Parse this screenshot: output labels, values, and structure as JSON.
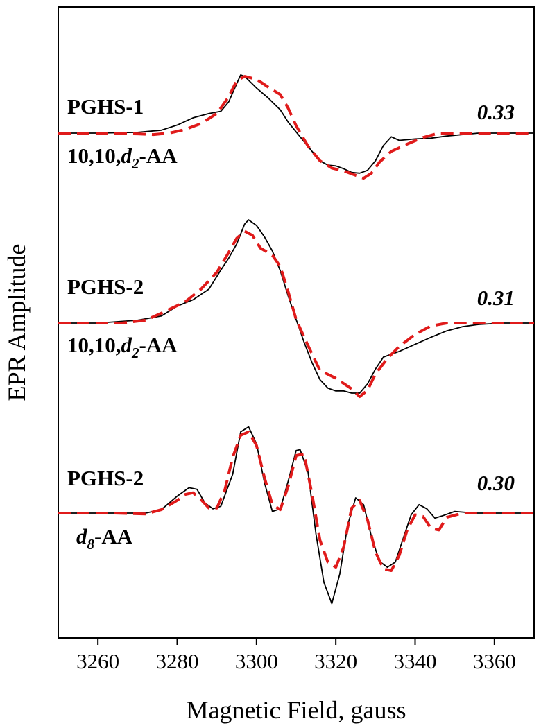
{
  "chart_data": {
    "type": "line",
    "title": "",
    "xlabel": "Magnetic Field, gauss",
    "ylabel": "EPR Amplitude",
    "xlim": [
      3250,
      3370
    ],
    "x_ticks": [
      "3260",
      "3280",
      "3300",
      "3320",
      "3340",
      "3360"
    ],
    "x_tick_values": [
      3260,
      3280,
      3300,
      3320,
      3340,
      3360
    ],
    "y_ticks_shown": false,
    "grid": false,
    "legend": "none",
    "colors": {
      "experimental": "#000000",
      "simulation": "#e01b1b"
    },
    "panels": [
      {
        "label_line1": "PGHS-1",
        "label_line2": {
          "prefix": "10,10,",
          "italic": "d",
          "sub": "2",
          "suffix": "-AA"
        },
        "value": "0.33",
        "series": [
          {
            "style": "solid",
            "points": [
              [
                3250,
                0.0
              ],
              [
                3260,
                0.0
              ],
              [
                3270,
                0.01
              ],
              [
                3276,
                0.04
              ],
              [
                3280,
                0.11
              ],
              [
                3284,
                0.21
              ],
              [
                3288,
                0.27
              ],
              [
                3291,
                0.3
              ],
              [
                3293,
                0.43
              ],
              [
                3295,
                0.68
              ],
              [
                3296,
                0.8
              ],
              [
                3297,
                0.78
              ],
              [
                3300,
                0.62
              ],
              [
                3303,
                0.48
              ],
              [
                3306,
                0.32
              ],
              [
                3308,
                0.15
              ],
              [
                3311,
                -0.05
              ],
              [
                3314,
                -0.25
              ],
              [
                3316,
                -0.38
              ],
              [
                3318,
                -0.44
              ],
              [
                3320,
                -0.45
              ],
              [
                3322,
                -0.49
              ],
              [
                3324,
                -0.54
              ],
              [
                3326,
                -0.55
              ],
              [
                3328,
                -0.51
              ],
              [
                3330,
                -0.38
              ],
              [
                3332,
                -0.17
              ],
              [
                3334,
                -0.05
              ],
              [
                3336,
                -0.1
              ],
              [
                3340,
                -0.08
              ],
              [
                3344,
                -0.07
              ],
              [
                3348,
                -0.04
              ],
              [
                3352,
                -0.02
              ],
              [
                3356,
                0.0
              ],
              [
                3362,
                0.0
              ],
              [
                3370,
                0.0
              ]
            ]
          },
          {
            "style": "dashed",
            "points": [
              [
                3250,
                0.0
              ],
              [
                3262,
                0.0
              ],
              [
                3270,
                -0.01
              ],
              [
                3274,
                -0.02
              ],
              [
                3278,
                0.0
              ],
              [
                3282,
                0.05
              ],
              [
                3286,
                0.13
              ],
              [
                3290,
                0.27
              ],
              [
                3293,
                0.5
              ],
              [
                3295,
                0.72
              ],
              [
                3297,
                0.78
              ],
              [
                3300,
                0.74
              ],
              [
                3303,
                0.63
              ],
              [
                3306,
                0.53
              ],
              [
                3308,
                0.34
              ],
              [
                3310,
                0.1
              ],
              [
                3313,
                -0.18
              ],
              [
                3316,
                -0.38
              ],
              [
                3319,
                -0.48
              ],
              [
                3322,
                -0.52
              ],
              [
                3325,
                -0.58
              ],
              [
                3327,
                -0.62
              ],
              [
                3329,
                -0.55
              ],
              [
                3331,
                -0.4
              ],
              [
                3334,
                -0.25
              ],
              [
                3338,
                -0.15
              ],
              [
                3342,
                -0.06
              ],
              [
                3346,
                0.0
              ],
              [
                3352,
                0.0
              ],
              [
                3370,
                0.0
              ]
            ]
          }
        ]
      },
      {
        "label_line1": "PGHS-2",
        "label_line2": {
          "prefix": "10,10,",
          "italic": "d",
          "sub": "2",
          "suffix": "-AA"
        },
        "value": "0.31",
        "series": [
          {
            "style": "solid",
            "points": [
              [
                3250,
                0.0
              ],
              [
                3260,
                0.0
              ],
              [
                3270,
                0.04
              ],
              [
                3276,
                0.1
              ],
              [
                3280,
                0.24
              ],
              [
                3284,
                0.33
              ],
              [
                3288,
                0.48
              ],
              [
                3291,
                0.75
              ],
              [
                3293,
                0.92
              ],
              [
                3295,
                1.12
              ],
              [
                3297,
                1.4
              ],
              [
                3298,
                1.46
              ],
              [
                3300,
                1.38
              ],
              [
                3302,
                1.22
              ],
              [
                3304,
                1.02
              ],
              [
                3306,
                0.74
              ],
              [
                3308,
                0.38
              ],
              [
                3310,
                0.05
              ],
              [
                3312,
                -0.27
              ],
              [
                3314,
                -0.56
              ],
              [
                3316,
                -0.8
              ],
              [
                3318,
                -0.92
              ],
              [
                3320,
                -0.96
              ],
              [
                3322,
                -0.96
              ],
              [
                3324,
                -0.99
              ],
              [
                3326,
                -0.99
              ],
              [
                3328,
                -0.86
              ],
              [
                3330,
                -0.65
              ],
              [
                3332,
                -0.48
              ],
              [
                3336,
                -0.4
              ],
              [
                3340,
                -0.3
              ],
              [
                3344,
                -0.2
              ],
              [
                3348,
                -0.11
              ],
              [
                3352,
                -0.05
              ],
              [
                3356,
                -0.02
              ],
              [
                3362,
                0.0
              ],
              [
                3370,
                0.0
              ]
            ]
          },
          {
            "style": "dashed",
            "points": [
              [
                3250,
                0.0
              ],
              [
                3266,
                0.0
              ],
              [
                3272,
                0.04
              ],
              [
                3276,
                0.14
              ],
              [
                3282,
                0.3
              ],
              [
                3286,
                0.48
              ],
              [
                3290,
                0.72
              ],
              [
                3293,
                1.0
              ],
              [
                3295,
                1.2
              ],
              [
                3297,
                1.3
              ],
              [
                3299,
                1.24
              ],
              [
                3301,
                1.06
              ],
              [
                3304,
                0.96
              ],
              [
                3306,
                0.8
              ],
              [
                3308,
                0.44
              ],
              [
                3310,
                0.05
              ],
              [
                3313,
                -0.32
              ],
              [
                3316,
                -0.67
              ],
              [
                3320,
                -0.78
              ],
              [
                3324,
                -0.93
              ],
              [
                3326,
                -1.04
              ],
              [
                3328,
                -0.95
              ],
              [
                3330,
                -0.72
              ],
              [
                3333,
                -0.5
              ],
              [
                3336,
                -0.33
              ],
              [
                3340,
                -0.16
              ],
              [
                3344,
                -0.04
              ],
              [
                3348,
                0.0
              ],
              [
                3370,
                0.0
              ]
            ]
          }
        ]
      },
      {
        "label_line1": "PGHS-2",
        "label_line2": {
          "prefix": "",
          "italic": "d",
          "sub": "8",
          "suffix": "-AA"
        },
        "value": "0.30",
        "series": [
          {
            "style": "solid",
            "points": [
              [
                3250,
                0.0
              ],
              [
                3262,
                0.0
              ],
              [
                3272,
                0.0
              ],
              [
                3276,
                0.04
              ],
              [
                3280,
                0.2
              ],
              [
                3283,
                0.3
              ],
              [
                3285,
                0.28
              ],
              [
                3287,
                0.12
              ],
              [
                3289,
                0.05
              ],
              [
                3291,
                0.08
              ],
              [
                3294,
                0.46
              ],
              [
                3296,
                0.96
              ],
              [
                3298,
                1.02
              ],
              [
                3300,
                0.82
              ],
              [
                3302,
                0.36
              ],
              [
                3304,
                0.02
              ],
              [
                3306,
                0.05
              ],
              [
                3308,
                0.38
              ],
              [
                3310,
                0.74
              ],
              [
                3311,
                0.75
              ],
              [
                3313,
                0.48
              ],
              [
                3315,
                -0.25
              ],
              [
                3317,
                -0.82
              ],
              [
                3319,
                -1.07
              ],
              [
                3321,
                -0.72
              ],
              [
                3323,
                -0.14
              ],
              [
                3325,
                0.18
              ],
              [
                3327,
                0.1
              ],
              [
                3329,
                -0.28
              ],
              [
                3331,
                -0.57
              ],
              [
                3333,
                -0.64
              ],
              [
                3335,
                -0.58
              ],
              [
                3337,
                -0.3
              ],
              [
                3339,
                -0.02
              ],
              [
                3341,
                0.1
              ],
              [
                3343,
                0.05
              ],
              [
                3345,
                -0.06
              ],
              [
                3347,
                -0.03
              ],
              [
                3350,
                0.02
              ],
              [
                3355,
                0.0
              ],
              [
                3370,
                0.0
              ]
            ]
          },
          {
            "style": "dashed",
            "points": [
              [
                3250,
                0.0
              ],
              [
                3264,
                0.0
              ],
              [
                3272,
                -0.01
              ],
              [
                3276,
                0.04
              ],
              [
                3280,
                0.15
              ],
              [
                3282,
                0.22
              ],
              [
                3284,
                0.24
              ],
              [
                3286,
                0.16
              ],
              [
                3288,
                0.06
              ],
              [
                3290,
                0.06
              ],
              [
                3292,
                0.27
              ],
              [
                3294,
                0.66
              ],
              [
                3296,
                0.92
              ],
              [
                3298,
                0.96
              ],
              [
                3300,
                0.8
              ],
              [
                3302,
                0.42
              ],
              [
                3304,
                0.1
              ],
              [
                3306,
                0.04
              ],
              [
                3308,
                0.32
              ],
              [
                3310,
                0.68
              ],
              [
                3312,
                0.7
              ],
              [
                3314,
                0.22
              ],
              [
                3316,
                -0.32
              ],
              [
                3318,
                -0.58
              ],
              [
                3320,
                -0.64
              ],
              [
                3322,
                -0.4
              ],
              [
                3324,
                0.06
              ],
              [
                3326,
                0.15
              ],
              [
                3328,
                -0.08
              ],
              [
                3330,
                -0.46
              ],
              [
                3332,
                -0.66
              ],
              [
                3334,
                -0.68
              ],
              [
                3336,
                -0.5
              ],
              [
                3338,
                -0.2
              ],
              [
                3340,
                -0.02
              ],
              [
                3342,
                -0.04
              ],
              [
                3344,
                -0.18
              ],
              [
                3346,
                -0.2
              ],
              [
                3348,
                -0.05
              ],
              [
                3352,
                0.0
              ],
              [
                3370,
                0.0
              ]
            ]
          }
        ]
      }
    ]
  }
}
